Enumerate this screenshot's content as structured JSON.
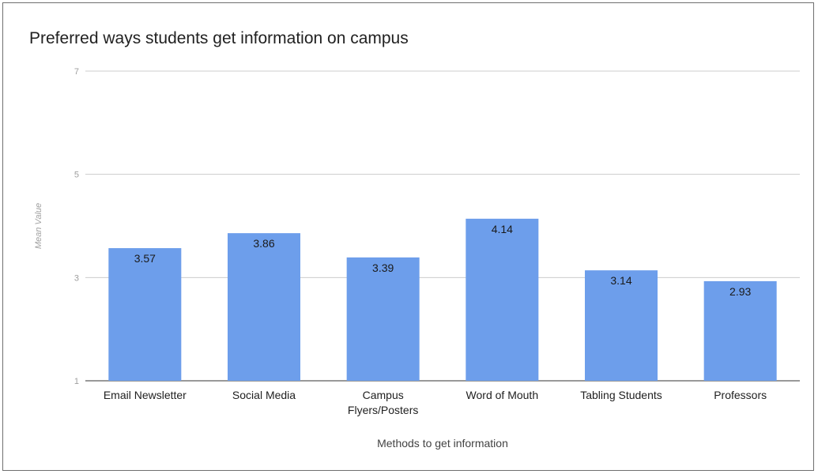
{
  "chart_data": {
    "type": "bar",
    "title": "Preferred ways students get information on campus",
    "xlabel": "Methods to get information",
    "ylabel": "Mean Value",
    "categories": [
      [
        "Email Newsletter"
      ],
      [
        "Social Media"
      ],
      [
        "Campus",
        "Flyers/Posters"
      ],
      [
        "Word of Mouth"
      ],
      [
        "Tabling Students"
      ],
      [
        "Professors"
      ]
    ],
    "values": [
      3.57,
      3.86,
      3.39,
      4.14,
      3.14,
      2.93
    ],
    "value_labels": [
      "3.57",
      "3.86",
      "3.39",
      "4.14",
      "3.14",
      "2.93"
    ],
    "ylim": [
      1,
      7
    ],
    "yticks": [
      1,
      3,
      5,
      7
    ],
    "grid": true,
    "legend": "none",
    "bar_color": "#6d9eeb",
    "gridline_color": "#cccccc"
  }
}
